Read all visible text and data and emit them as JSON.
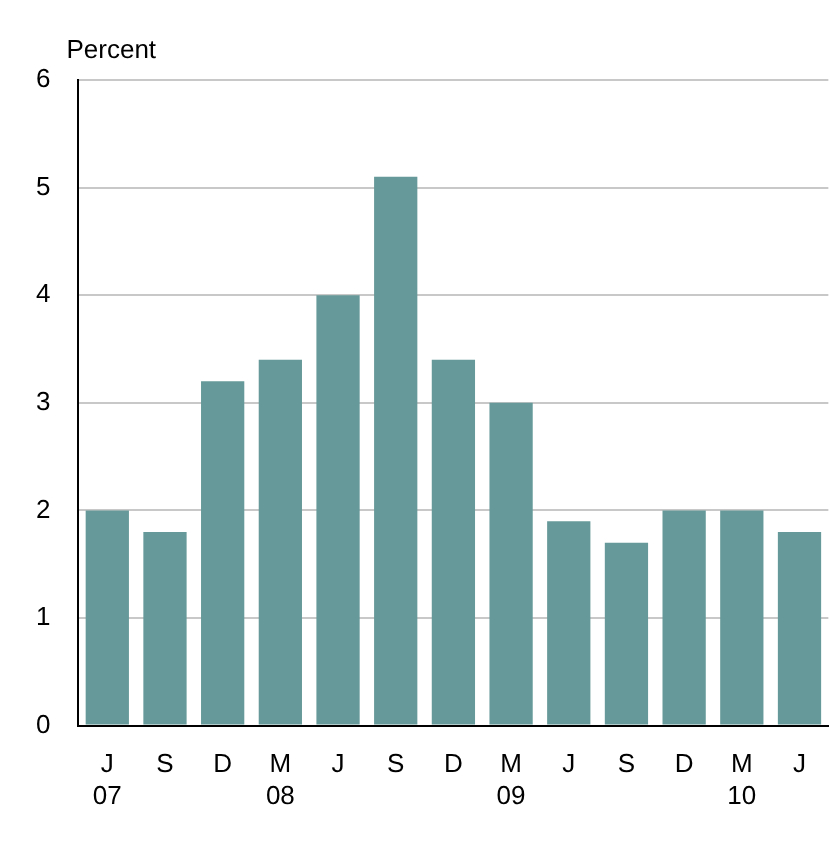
{
  "chart_data": {
    "type": "bar",
    "ylabel": "Percent",
    "categories": [
      "J\n07",
      "S",
      "D",
      "M\n08",
      "J",
      "S",
      "D",
      "M\n09",
      "J",
      "S",
      "D",
      "M\n10",
      "J"
    ],
    "values": [
      2.0,
      1.8,
      3.2,
      3.4,
      4.0,
      5.1,
      3.4,
      3.0,
      1.9,
      1.7,
      2.0,
      2.0,
      1.8
    ],
    "color": "#669999",
    "ylim": [
      0,
      6
    ],
    "yticks": [
      0,
      1,
      2,
      3,
      4,
      5,
      6
    ],
    "grid": "y",
    "legend": false
  }
}
